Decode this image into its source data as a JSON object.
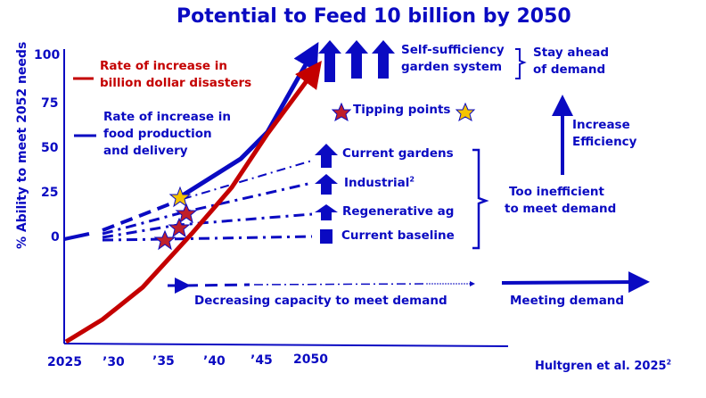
{
  "title": "Potential to Feed 10 billion by 2050",
  "colors": {
    "blue": "#0a0ac2",
    "red": "#c40000",
    "star_red": "#c0202a",
    "star_gold": "#f5c400"
  },
  "chart_data": {
    "type": "line",
    "ylabel": "% Ability to meet 2052 needs",
    "y_ticks": [
      "100",
      "75",
      "50",
      "25",
      "0"
    ],
    "x_ticks": [
      "2025",
      "’30",
      "’35",
      "’40",
      "’45",
      "2050"
    ],
    "series": [
      {
        "name": "Rate of increase in billion dollar disasters",
        "color": "red"
      },
      {
        "name": "Rate of increase in food production and delivery",
        "color": "blue"
      }
    ]
  },
  "legend": {
    "red_line": "Rate of increase in\nbillion dollar disasters",
    "red_l1": "Rate of increase in",
    "red_l2": "billion dollar disasters",
    "blue_l1": "Rate of increase in",
    "blue_l2": "food production",
    "blue_l3": "and delivery"
  },
  "labels": {
    "self_suff_l1": "Self-sufficiency",
    "self_suff_l2": "garden system",
    "stay_l1": "Stay ahead",
    "stay_l2": "of demand",
    "tipping": "Tipping points",
    "increase_l1": "Increase",
    "increase_l2": "Efficiency",
    "current_gardens": "Current gardens",
    "industrial": "Industrial",
    "industrial_sup": "2",
    "regenerative": "Regenerative ag",
    "baseline": "Current baseline",
    "too_l1": "Too inefficient",
    "too_l2": "to meet demand",
    "decreasing": "Decreasing capacity to meet demand",
    "meeting": "Meeting demand",
    "citation": "Hultgren et al. 2025",
    "citation_sup": "2"
  }
}
